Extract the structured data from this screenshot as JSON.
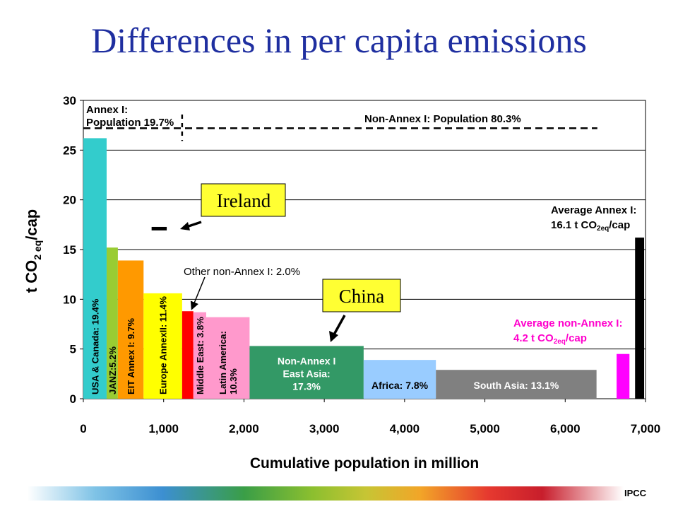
{
  "slide": {
    "title": "Differences in per capita emissions",
    "footer_label": "IPCC"
  },
  "chart_data": {
    "type": "bar",
    "variable_width": true,
    "xlabel": "Cumulative population in million",
    "ylabel_parts": [
      "t CO",
      "2 eq",
      "/cap"
    ],
    "xlim": [
      0,
      7000
    ],
    "ylim": [
      0,
      30
    ],
    "x_ticks": [
      "0",
      "1,000",
      "2,000",
      "3,000",
      "4,000",
      "5,000",
      "6,000",
      "7,000"
    ],
    "y_ticks": [
      "0",
      "5",
      "10",
      "15",
      "20",
      "25",
      "30"
    ],
    "grid": true,
    "bars": [
      {
        "x0": 0,
        "x1": 290,
        "value": 26.2,
        "color": "#33cccc",
        "label": "USA & Canada: 19.4%",
        "label_rot": true
      },
      {
        "x0": 290,
        "x1": 430,
        "value": 15.2,
        "color": "#99cc33",
        "label": "JANZ:5.2%",
        "label_rot": true
      },
      {
        "x0": 430,
        "x1": 750,
        "value": 13.9,
        "color": "#ff9900",
        "label": "EIT Annex I: 9.7%",
        "label_rot": true
      },
      {
        "x0": 750,
        "x1": 1230,
        "value": 10.6,
        "color": "#ffff00",
        "label": "Europe AnnexII: 11.4%",
        "label_rot": true
      },
      {
        "x0": 1230,
        "x1": 1370,
        "value": 8.8,
        "color": "#ff0000",
        "label": "",
        "label_rot": true
      },
      {
        "x0": 1370,
        "x1": 1530,
        "value": 8.7,
        "color": "#ff99cc",
        "label": "Middle East: 3.8%",
        "label_rot": true
      },
      {
        "x0": 1530,
        "x1": 2070,
        "value": 8.2,
        "color": "#ff99cc",
        "label": "Latin America: 10.3%",
        "label_rot": true
      },
      {
        "x0": 2070,
        "x1": 3490,
        "value": 5.3,
        "color": "#339966",
        "label": "Non-Annex I East Asia: 17.3%",
        "label_rot": false
      },
      {
        "x0": 3490,
        "x1": 4390,
        "value": 3.9,
        "color": "#99ccff",
        "label": "Africa: 7.8%",
        "label_rot": false
      },
      {
        "x0": 4390,
        "x1": 6390,
        "value": 2.9,
        "color": "#808080",
        "label": "South Asia: 13.1%",
        "label_rot": false
      },
      {
        "x0": 6640,
        "x1": 6800,
        "value": 4.5,
        "color": "#ff00ff",
        "label": "",
        "label_rot": false
      },
      {
        "x0": 6870,
        "x1": 7030,
        "value": 16.2,
        "color": "#000000",
        "label": "",
        "label_rot": false
      }
    ],
    "annotations": {
      "annex_label_line1": "Annex I:",
      "annex_label_line2": "Population 19.7%",
      "nonannex_label": "Non-Annex I: Population 80.3%",
      "other_nonannex": "Other non-Annex I: 2.0%",
      "avg_annex_line1": "Average Annex I:",
      "avg_annex_value": "16.1 t CO",
      "avg_annex_sub": "2eq",
      "avg_annex_unit": "/cap",
      "avg_nonannex_line1": "Average non-Annex I:",
      "avg_nonannex_value": "4.2 t CO",
      "avg_nonannex_sub": "2eq",
      "avg_nonannex_unit": "/cap",
      "ireland_label": "Ireland",
      "china_label": "China",
      "ireland_value": 17.1,
      "ireland_x": [
        850,
        1100
      ]
    },
    "colors": {
      "title": "#1f2fa0",
      "callout_fill": "#ffff33",
      "avg_nonannex_text": "#ff00cc",
      "grid": "#000000"
    }
  }
}
